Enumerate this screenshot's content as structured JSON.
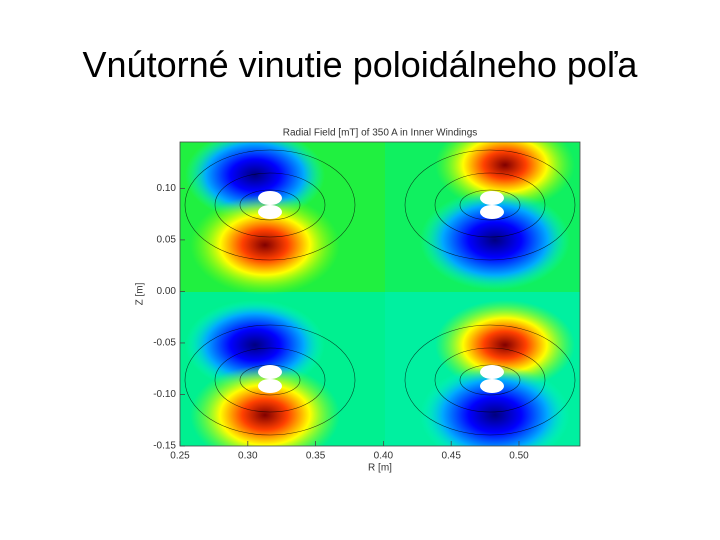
{
  "title": "Vnútorné vinutie poloidálneho poľa",
  "chart_data": {
    "type": "contour",
    "title": "Radial Field [mT] of 350 A in Inner Windings",
    "x_label": "R [m]",
    "y_label": "Z [m]",
    "xlim": [
      0.25,
      0.545
    ],
    "ylim": [
      -0.15,
      0.145
    ],
    "xticks": [
      {
        "value": 0.25,
        "label": "0.25"
      },
      {
        "value": 0.3,
        "label": "0.30"
      },
      {
        "value": 0.35,
        "label": "0.35"
      },
      {
        "value": 0.4,
        "label": "0.40"
      },
      {
        "value": 0.45,
        "label": "0.45"
      },
      {
        "value": 0.5,
        "label": "0.50"
      }
    ],
    "yticks": [
      {
        "value": -0.15,
        "label": "-0.15"
      },
      {
        "value": -0.1,
        "label": "-0.10"
      },
      {
        "value": -0.05,
        "label": "-0.05"
      },
      {
        "value": 0.0,
        "label": "0.00"
      },
      {
        "value": 0.05,
        "label": "0.05"
      },
      {
        "value": 0.1,
        "label": "0.10"
      }
    ]
  }
}
